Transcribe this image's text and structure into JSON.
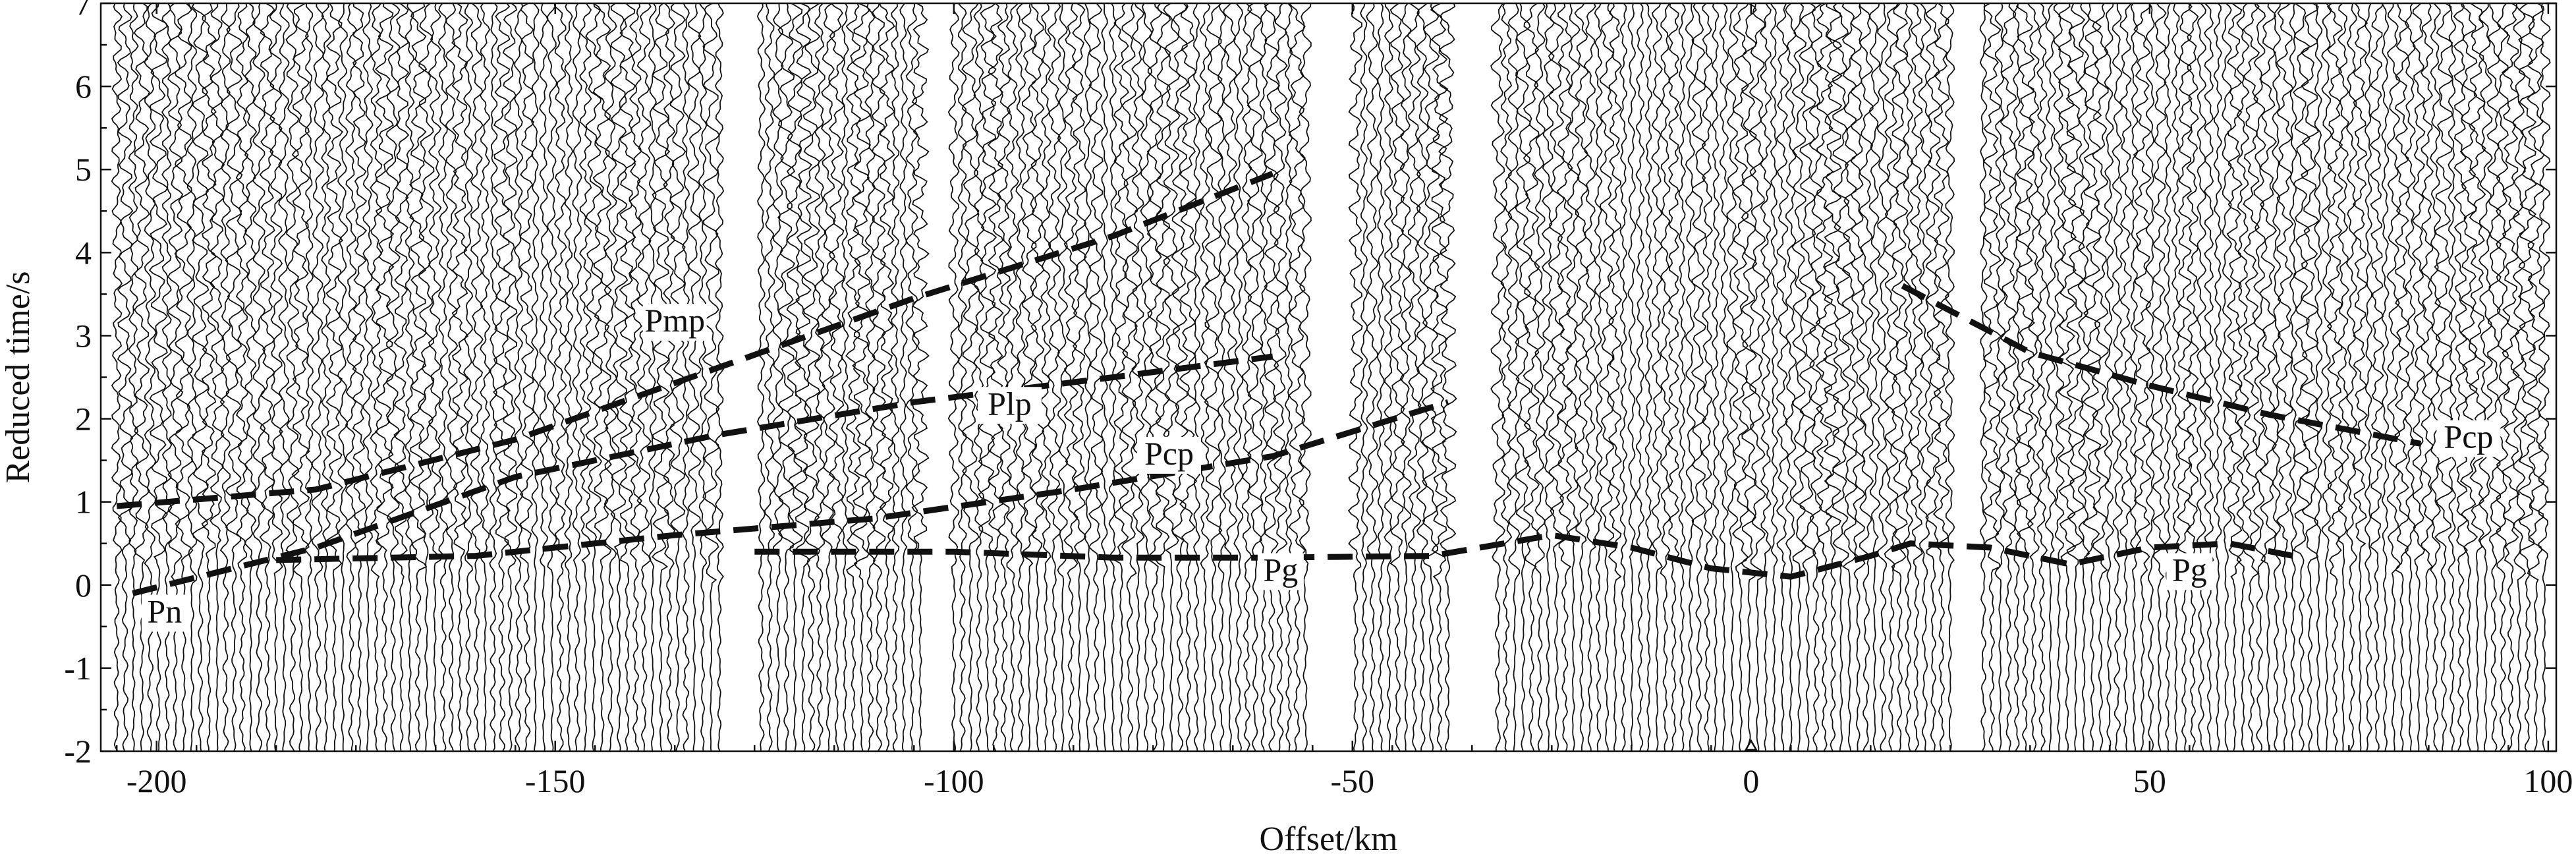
{
  "chart_data": {
    "type": "seismic record section",
    "xlabel": "Offset/km",
    "ylabel": "Reduced time/s",
    "xlim": [
      -207,
      101
    ],
    "ylim": [
      -2,
      7
    ],
    "x_ticks": [
      -200,
      -150,
      -100,
      -50,
      0,
      50,
      100
    ],
    "x_tick_labels": [
      "-200",
      "-150",
      "-100",
      "-50",
      "0",
      "50",
      "100"
    ],
    "y_ticks": [
      -2,
      -1,
      0,
      1,
      2,
      3,
      4,
      5,
      6,
      7
    ],
    "y_tick_labels": [
      "-2",
      "-1",
      "0",
      "1",
      "2",
      "3",
      "4",
      "5",
      "6",
      "7"
    ],
    "shot_marker_offset": 0,
    "trace_gaps": [
      [
        -129,
        -125
      ],
      [
        -104,
        -100
      ],
      [
        -55,
        -50
      ],
      [
        -38,
        -32
      ],
      [
        25,
        29
      ]
    ],
    "traces": {
      "x_start": -205,
      "x_end": 100,
      "spacing_km": 1.05
    },
    "phases": [
      {
        "label": "Pmp",
        "label_x": -135,
        "label_y": 3.05,
        "points": [
          [
            -205,
            0.95
          ],
          [
            -180,
            1.15
          ],
          [
            -155,
            1.75
          ],
          [
            -130,
            2.6
          ],
          [
            -105,
            3.45
          ],
          [
            -80,
            4.2
          ],
          [
            -60,
            4.95
          ]
        ]
      },
      {
        "label": "Plp",
        "label_x": -93,
        "label_y": 2.05,
        "points": [
          [
            -203,
            -0.1
          ],
          [
            -180,
            0.45
          ],
          [
            -155,
            1.3
          ],
          [
            -130,
            1.8
          ],
          [
            -105,
            2.2
          ],
          [
            -80,
            2.5
          ],
          [
            -60,
            2.75
          ]
        ]
      },
      {
        "label": "Pcp",
        "label_x": -73,
        "label_y": 1.45,
        "points": [
          [
            -185,
            0.3
          ],
          [
            -160,
            0.35
          ],
          [
            -135,
            0.6
          ],
          [
            -110,
            0.8
          ],
          [
            -85,
            1.15
          ],
          [
            -60,
            1.55
          ],
          [
            -38,
            2.2
          ]
        ]
      },
      {
        "label": "Pn",
        "label_x": -199,
        "label_y": -0.45,
        "points": []
      },
      {
        "label": "Pg",
        "label_x": -59,
        "label_y": 0.05,
        "points": [
          [
            -125,
            0.4
          ],
          [
            -100,
            0.4
          ],
          [
            -80,
            0.33
          ],
          [
            -60,
            0.33
          ],
          [
            -40,
            0.35
          ],
          [
            -25,
            0.6
          ],
          [
            -15,
            0.45
          ],
          [
            -5,
            0.2
          ],
          [
            5,
            0.1
          ],
          [
            15,
            0.35
          ],
          [
            20,
            0.5
          ],
          [
            30,
            0.45
          ],
          [
            40,
            0.25
          ],
          [
            50,
            0.45
          ],
          [
            60,
            0.5
          ],
          [
            68,
            0.35
          ]
        ]
      },
      {
        "label": "Pg",
        "label_x": 55,
        "label_y": 0.05,
        "points": []
      },
      {
        "label": "Pcp",
        "label_x": 90,
        "label_y": 1.65,
        "points": [
          [
            19,
            3.6
          ],
          [
            35,
            2.8
          ],
          [
            50,
            2.4
          ],
          [
            65,
            2.05
          ],
          [
            84,
            1.7
          ]
        ]
      }
    ]
  }
}
